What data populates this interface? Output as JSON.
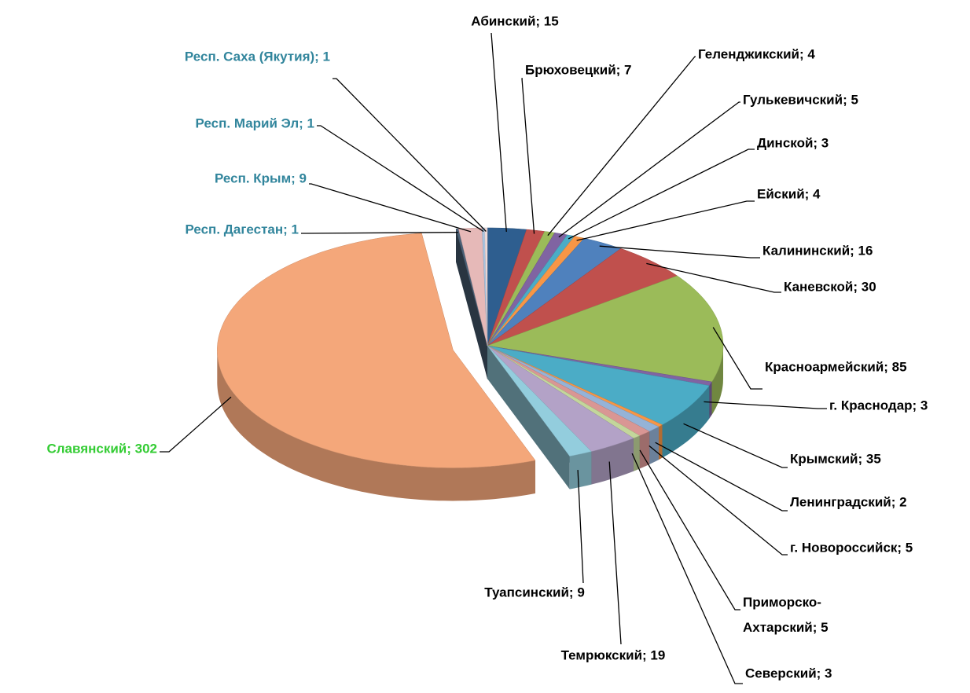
{
  "chart_data": {
    "type": "pie3d",
    "values": [
      15,
      7,
      4,
      5,
      3,
      4,
      16,
      30,
      85,
      3,
      35,
      2,
      5,
      5,
      3,
      19,
      9,
      302,
      1,
      9,
      1,
      1
    ],
    "value_labels": [
      "Абинский; 15",
      "Брюховецкий; 7",
      "Геленджикский; 4",
      "Гулькевичский; 5",
      "Динской; 3",
      "Ейский; 4",
      "Калининский; 16",
      "Каневской; 30",
      "Красноармейский; 85",
      "г. Краснодар; 3",
      "Крымский; 35",
      "Ленинградский; 2",
      "г. Новороссийск; 5",
      "Приморско-Ахтарский; 5",
      "Северский; 3",
      "Темрюкский; 19",
      "Туапсинский; 9",
      "Славянский; 302",
      "Респ. Дагестан; 1",
      "Респ. Крым; 9",
      "Респ. Марий Эл; 1",
      "Респ. Саха (Якутия); 1"
    ],
    "colors": [
      "#2e5e8f",
      "#c0504d",
      "#9bbb59",
      "#8064a2",
      "#4bacc6",
      "#f79646",
      "#4f81bd",
      "#c0504d",
      "#9bbb59",
      "#8064a2",
      "#4bacc6",
      "#f79646",
      "#95b3d7",
      "#d99694",
      "#c3d69b",
      "#b3a2c7",
      "#93cddd",
      "#f4a77a",
      "#4a6076",
      "#e6b9b8",
      "#a9c4e0",
      "#f2dcdb"
    ],
    "label_colors": [
      "#000000",
      "#000000",
      "#000000",
      "#000000",
      "#000000",
      "#000000",
      "#000000",
      "#000000",
      "#000000",
      "#000000",
      "#000000",
      "#000000",
      "#000000",
      "#000000",
      "#000000",
      "#000000",
      "#000000",
      "#33cc33",
      "#31859c",
      "#31859c",
      "#31859c",
      "#31859c"
    ],
    "exploded": [
      17
    ]
  }
}
